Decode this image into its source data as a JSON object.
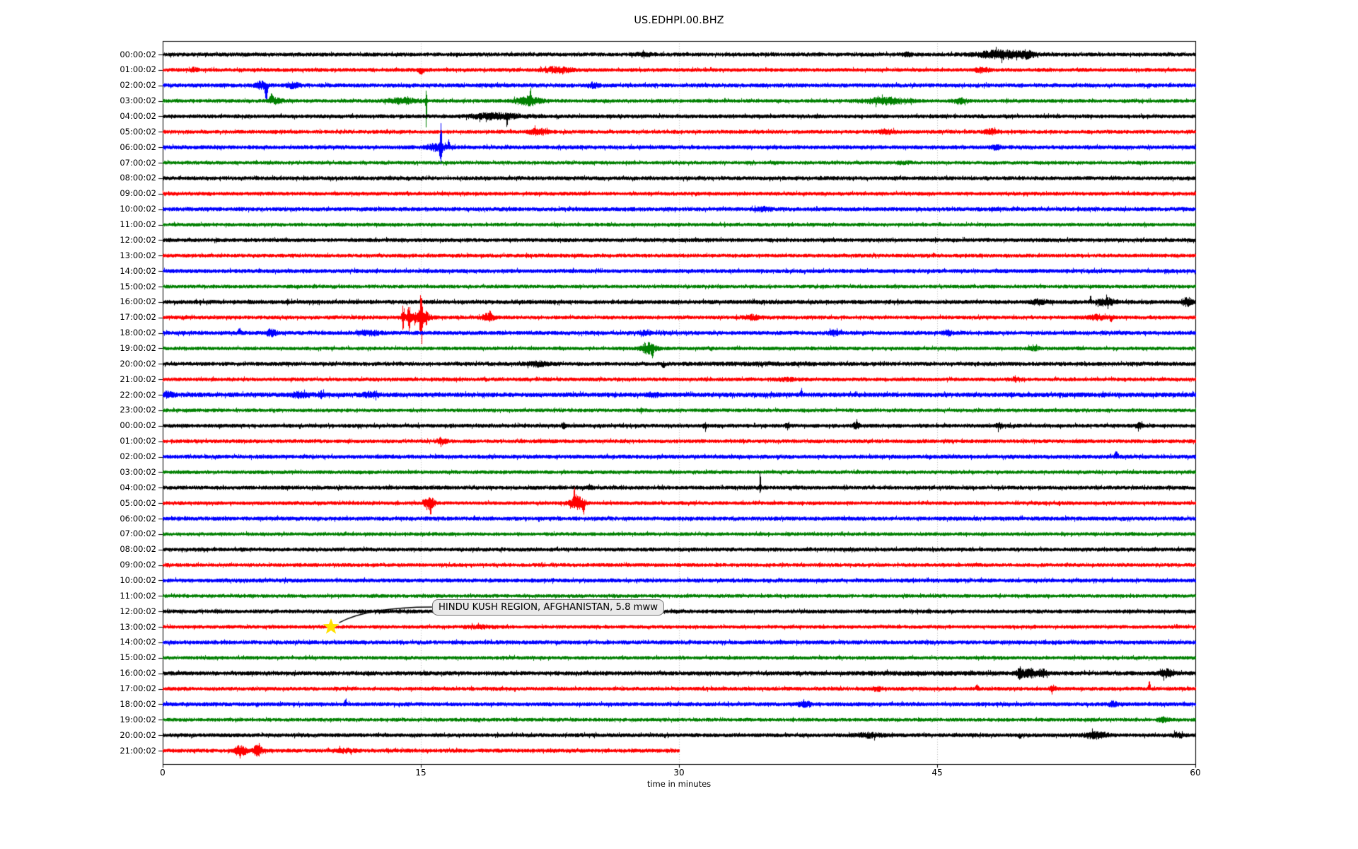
{
  "title": "US.EDHPI.00.BHZ",
  "annotation": {
    "text": "HINDU KUSH REGION, AFGHANISTAN, 5.8 mww",
    "marker": "star",
    "marker_color": "#ffe100",
    "row_index": 37,
    "minute": 9.8
  },
  "chart_data": {
    "type": "line",
    "variant": "helicorder-day-plot",
    "xlabel": "time in minutes",
    "xticks": [
      0,
      15,
      30,
      45,
      60
    ],
    "x_range": [
      0,
      60
    ],
    "gridlines": [
      15,
      30,
      45
    ],
    "grid_style": "dotted",
    "palette": {
      "black": "#000000",
      "red": "#ff0000",
      "blue": "#0000ff",
      "green": "#008000"
    },
    "traces": [
      {
        "label": "00:00:02",
        "color": "black",
        "base": 2.6,
        "start": 0,
        "end": 60,
        "events": [
          {
            "t": 28,
            "d": 0.8,
            "a": 1.5
          },
          {
            "t": 43.3,
            "d": 0.4,
            "a": 1.5
          },
          {
            "t": 48.7,
            "d": 1.8,
            "a": 4.5
          },
          {
            "t": 50.2,
            "d": 0.6,
            "a": 3
          }
        ]
      },
      {
        "label": "01:00:02",
        "color": "red",
        "base": 2.5,
        "start": 0,
        "end": 60,
        "events": [
          {
            "t": 1.8,
            "d": 0.3,
            "a": 2
          },
          {
            "t": 15.0,
            "d": 0.25,
            "a": 5,
            "dir": "down"
          },
          {
            "t": 22.9,
            "d": 1.2,
            "a": 3
          },
          {
            "t": 47.6,
            "d": 0.6,
            "a": 2.5
          }
        ]
      },
      {
        "label": "02:00:02",
        "color": "blue",
        "base": 2.7,
        "start": 0,
        "end": 60,
        "events": [
          {
            "t": 5.7,
            "d": 0.4,
            "a": 4
          },
          {
            "t": 6.0,
            "d": 0.12,
            "a": 20,
            "dir": "down"
          },
          {
            "t": 7.6,
            "d": 0.5,
            "a": 3
          },
          {
            "t": 25.0,
            "d": 0.4,
            "a": 2.5
          }
        ]
      },
      {
        "label": "03:00:02",
        "color": "green",
        "base": 2.4,
        "start": 0,
        "end": 60,
        "events": [
          {
            "t": 6.3,
            "d": 0.15,
            "a": 8,
            "dir": "up"
          },
          {
            "t": 6.6,
            "d": 0.5,
            "a": 3
          },
          {
            "t": 13.9,
            "d": 1.2,
            "a": 3
          },
          {
            "t": 15.3,
            "d": 0.05,
            "a": 15,
            "dir": "up"
          },
          {
            "t": 15.3,
            "d": 0.05,
            "a": 42,
            "dir": "down"
          },
          {
            "t": 21.2,
            "d": 1.0,
            "a": 5
          },
          {
            "t": 21.35,
            "d": 0.06,
            "a": 13,
            "dir": "up"
          },
          {
            "t": 42.0,
            "d": 1.8,
            "a": 3.5
          },
          {
            "t": 46.3,
            "d": 0.5,
            "a": 3
          }
        ]
      },
      {
        "label": "04:00:02",
        "color": "black",
        "base": 2.6,
        "start": 0,
        "end": 60,
        "events": [
          {
            "t": 19.3,
            "d": 1.8,
            "a": 3.5
          },
          {
            "t": 20.0,
            "d": 0.07,
            "a": 9,
            "dir": "down"
          }
        ]
      },
      {
        "label": "05:00:02",
        "color": "red",
        "base": 2.5,
        "start": 0,
        "end": 60,
        "events": [
          {
            "t": 21.8,
            "d": 0.8,
            "a": 3
          },
          {
            "t": 42.0,
            "d": 0.6,
            "a": 2.5
          },
          {
            "t": 48.1,
            "d": 0.5,
            "a": 2.5
          }
        ]
      },
      {
        "label": "06:00:02",
        "color": "blue",
        "base": 2.7,
        "start": 0,
        "end": 60,
        "events": [
          {
            "t": 15.9,
            "d": 0.8,
            "a": 3.5
          },
          {
            "t": 16.15,
            "d": 0.08,
            "a": 30,
            "dir": "up"
          },
          {
            "t": 16.15,
            "d": 0.08,
            "a": 22,
            "dir": "down"
          },
          {
            "t": 16.6,
            "d": 0.08,
            "a": 9,
            "dir": "up"
          },
          {
            "t": 48.4,
            "d": 0.4,
            "a": 2
          }
        ]
      },
      {
        "label": "07:00:02",
        "color": "green",
        "base": 2.4,
        "start": 0,
        "end": 60,
        "events": [
          {
            "t": 43,
            "d": 0.8,
            "a": 1.2
          }
        ]
      },
      {
        "label": "08:00:02",
        "color": "black",
        "base": 2.6,
        "start": 0,
        "end": 60,
        "events": []
      },
      {
        "label": "09:00:02",
        "color": "red",
        "base": 2.5,
        "start": 0,
        "end": 60,
        "events": []
      },
      {
        "label": "10:00:02",
        "color": "blue",
        "base": 2.7,
        "start": 0,
        "end": 60,
        "events": [
          {
            "t": 34.9,
            "d": 0.6,
            "a": 2
          }
        ]
      },
      {
        "label": "11:00:02",
        "color": "green",
        "base": 2.4,
        "start": 0,
        "end": 60,
        "events": []
      },
      {
        "label": "12:00:02",
        "color": "black",
        "base": 2.6,
        "start": 0,
        "end": 60,
        "events": []
      },
      {
        "label": "13:00:02",
        "color": "red",
        "base": 2.5,
        "start": 0,
        "end": 60,
        "events": []
      },
      {
        "label": "14:00:02",
        "color": "blue",
        "base": 2.7,
        "start": 0,
        "end": 60,
        "events": []
      },
      {
        "label": "15:00:02",
        "color": "green",
        "base": 2.4,
        "start": 0,
        "end": 60,
        "events": []
      },
      {
        "label": "16:00:02",
        "color": "black",
        "base": 2.8,
        "start": 0,
        "end": 60,
        "events": [
          {
            "t": 50.9,
            "d": 0.6,
            "a": 2.5
          },
          {
            "t": 53.9,
            "d": 0.07,
            "a": 8,
            "dir": "up"
          },
          {
            "t": 54.8,
            "d": 0.7,
            "a": 3.5
          },
          {
            "t": 59.5,
            "d": 0.4,
            "a": 4.5
          }
        ]
      },
      {
        "label": "17:00:02",
        "color": "red",
        "base": 2.5,
        "start": 0,
        "end": 60,
        "events": [
          {
            "t": 13.95,
            "d": 0.08,
            "a": 14
          },
          {
            "t": 14.3,
            "d": 0.08,
            "a": 16
          },
          {
            "t": 15.0,
            "d": 0.12,
            "a": 26
          },
          {
            "t": 15.3,
            "d": 0.08,
            "a": 12
          },
          {
            "t": 14.8,
            "d": 1.0,
            "a": 5
          },
          {
            "t": 18.9,
            "d": 0.5,
            "a": 4
          },
          {
            "t": 19.0,
            "d": 0.08,
            "a": 8,
            "dir": "up"
          },
          {
            "t": 34.2,
            "d": 0.6,
            "a": 2.5
          },
          {
            "t": 54.3,
            "d": 0.8,
            "a": 2.5
          },
          {
            "t": 55.1,
            "d": 0.08,
            "a": 6,
            "dir": "down"
          }
        ]
      },
      {
        "label": "18:00:02",
        "color": "blue",
        "base": 2.7,
        "start": 0,
        "end": 60,
        "events": [
          {
            "t": 4.45,
            "d": 0.12,
            "a": 6,
            "dir": "up"
          },
          {
            "t": 6.3,
            "d": 0.4,
            "a": 3.5
          },
          {
            "t": 12.1,
            "d": 0.8,
            "a": 2
          },
          {
            "t": 28.1,
            "d": 0.4,
            "a": 2.5
          },
          {
            "t": 39.0,
            "d": 0.4,
            "a": 2.5
          },
          {
            "t": 45.6,
            "d": 0.4,
            "a": 2.5
          }
        ]
      },
      {
        "label": "19:00:02",
        "color": "green",
        "base": 2.4,
        "start": 0,
        "end": 60,
        "events": [
          {
            "t": 28.2,
            "d": 0.6,
            "a": 6
          },
          {
            "t": 28.45,
            "d": 0.07,
            "a": 8,
            "dir": "down"
          },
          {
            "t": 50.6,
            "d": 0.4,
            "a": 2
          }
        ]
      },
      {
        "label": "20:00:02",
        "color": "black",
        "base": 2.6,
        "start": 0,
        "end": 60,
        "events": [
          {
            "t": 21.8,
            "d": 0.9,
            "a": 2.5
          },
          {
            "t": 29.1,
            "d": 0.15,
            "a": 4,
            "dir": "down"
          },
          {
            "t": 35,
            "d": 6,
            "a": 0.6
          }
        ]
      },
      {
        "label": "21:00:02",
        "color": "red",
        "base": 2.5,
        "start": 0,
        "end": 60,
        "events": [
          {
            "t": 36.2,
            "d": 0.9,
            "a": 1.3
          },
          {
            "t": 49.6,
            "d": 0.4,
            "a": 2
          }
        ]
      },
      {
        "label": "22:00:02",
        "color": "blue",
        "base": 3.1,
        "start": 0,
        "end": 60,
        "events": [
          {
            "t": 0.3,
            "d": 0.35,
            "a": 4
          },
          {
            "t": 8.0,
            "d": 0.7,
            "a": 2.5
          },
          {
            "t": 9.2,
            "d": 0.25,
            "a": 3
          },
          {
            "t": 12.1,
            "d": 0.6,
            "a": 2.8
          },
          {
            "t": 28.5,
            "d": 0.4,
            "a": 1.8
          },
          {
            "t": 37.1,
            "d": 0.08,
            "a": 7,
            "dir": "up"
          }
        ]
      },
      {
        "label": "23:00:02",
        "color": "green",
        "base": 2.4,
        "start": 0,
        "end": 60,
        "events": [
          {
            "t": 27.8,
            "d": 0.15,
            "a": 3
          }
        ]
      },
      {
        "label": "00:00:02",
        "color": "black",
        "base": 2.6,
        "start": 0,
        "end": 60,
        "events": [
          {
            "t": 23.3,
            "d": 0.15,
            "a": 3
          },
          {
            "t": 31.5,
            "d": 0.15,
            "a": 2.5
          },
          {
            "t": 36.3,
            "d": 0.15,
            "a": 4
          },
          {
            "t": 40.3,
            "d": 0.25,
            "a": 4
          },
          {
            "t": 48.6,
            "d": 0.25,
            "a": 3
          },
          {
            "t": 56.7,
            "d": 0.25,
            "a": 3
          }
        ]
      },
      {
        "label": "01:00:02",
        "color": "red",
        "base": 2.5,
        "start": 0,
        "end": 60,
        "events": [
          {
            "t": 16.2,
            "d": 0.4,
            "a": 3
          }
        ]
      },
      {
        "label": "02:00:02",
        "color": "blue",
        "base": 2.7,
        "start": 0,
        "end": 60,
        "events": [
          {
            "t": 55.4,
            "d": 0.15,
            "a": 6,
            "dir": "up"
          }
        ]
      },
      {
        "label": "03:00:02",
        "color": "green",
        "base": 2.4,
        "start": 0,
        "end": 60,
        "events": []
      },
      {
        "label": "04:00:02",
        "color": "black",
        "base": 2.6,
        "start": 0,
        "end": 60,
        "events": [
          {
            "t": 24.8,
            "d": 0.25,
            "a": 2.5
          },
          {
            "t": 34.7,
            "d": 0.06,
            "a": 22,
            "dir": "up"
          },
          {
            "t": 34.7,
            "d": 0.06,
            "a": 5,
            "dir": "down"
          }
        ]
      },
      {
        "label": "05:00:02",
        "color": "red",
        "base": 2.5,
        "start": 0,
        "end": 60,
        "events": [
          {
            "t": 15.5,
            "d": 0.4,
            "a": 7
          },
          {
            "t": 15.55,
            "d": 0.07,
            "a": 10,
            "dir": "down"
          },
          {
            "t": 23.9,
            "d": 0.08,
            "a": 15,
            "dir": "up"
          },
          {
            "t": 24.1,
            "d": 0.6,
            "a": 7
          },
          {
            "t": 24.45,
            "d": 0.08,
            "a": 13,
            "dir": "down"
          }
        ]
      },
      {
        "label": "06:00:02",
        "color": "blue",
        "base": 2.7,
        "start": 0,
        "end": 60,
        "events": []
      },
      {
        "label": "07:00:02",
        "color": "green",
        "base": 2.4,
        "start": 0,
        "end": 60,
        "events": []
      },
      {
        "label": "08:00:02",
        "color": "black",
        "base": 2.6,
        "start": 0,
        "end": 60,
        "events": []
      },
      {
        "label": "09:00:02",
        "color": "red",
        "base": 2.5,
        "start": 0,
        "end": 60,
        "events": []
      },
      {
        "label": "10:00:02",
        "color": "blue",
        "base": 2.7,
        "start": 0,
        "end": 60,
        "events": []
      },
      {
        "label": "11:00:02",
        "color": "green",
        "base": 2.4,
        "start": 0,
        "end": 60,
        "events": []
      },
      {
        "label": "12:00:02",
        "color": "black",
        "base": 2.6,
        "start": 0,
        "end": 60,
        "events": []
      },
      {
        "label": "13:00:02",
        "color": "red",
        "base": 2.4,
        "start": 0,
        "end": 60,
        "events": [
          {
            "t": 18.5,
            "d": 1.2,
            "a": 1.2
          }
        ]
      },
      {
        "label": "14:00:02",
        "color": "blue",
        "base": 2.7,
        "start": 0,
        "end": 60,
        "events": []
      },
      {
        "label": "15:00:02",
        "color": "green",
        "base": 2.4,
        "start": 0,
        "end": 60,
        "events": []
      },
      {
        "label": "16:00:02",
        "color": "black",
        "base": 2.8,
        "start": 0,
        "end": 60,
        "events": [
          {
            "t": 44,
            "d": 5,
            "a": 0.6
          },
          {
            "t": 49.8,
            "d": 0.25,
            "a": 6
          },
          {
            "t": 50.4,
            "d": 0.5,
            "a": 4.5
          },
          {
            "t": 51.1,
            "d": 0.35,
            "a": 4
          },
          {
            "t": 58.3,
            "d": 0.5,
            "a": 4
          }
        ]
      },
      {
        "label": "17:00:02",
        "color": "red",
        "base": 2.5,
        "start": 0,
        "end": 60,
        "events": [
          {
            "t": 41.5,
            "d": 0.4,
            "a": 2
          },
          {
            "t": 47.3,
            "d": 0.12,
            "a": 5,
            "dir": "up"
          },
          {
            "t": 51.7,
            "d": 0.25,
            "a": 3
          },
          {
            "t": 57.3,
            "d": 0.08,
            "a": 10,
            "dir": "up"
          }
        ]
      },
      {
        "label": "18:00:02",
        "color": "blue",
        "base": 2.7,
        "start": 0,
        "end": 60,
        "events": [
          {
            "t": 10.6,
            "d": 0.12,
            "a": 5,
            "dir": "up"
          },
          {
            "t": 37.3,
            "d": 0.5,
            "a": 3
          },
          {
            "t": 55.2,
            "d": 0.35,
            "a": 2.5
          }
        ]
      },
      {
        "label": "19:00:02",
        "color": "green",
        "base": 2.4,
        "start": 0,
        "end": 60,
        "events": [
          {
            "t": 58.1,
            "d": 0.4,
            "a": 2.5
          }
        ]
      },
      {
        "label": "20:00:02",
        "color": "black",
        "base": 2.6,
        "start": 0,
        "end": 60,
        "events": [
          {
            "t": 41.0,
            "d": 1.2,
            "a": 2
          },
          {
            "t": 49.8,
            "d": 0.15,
            "a": 4,
            "dir": "down"
          },
          {
            "t": 54.2,
            "d": 0.9,
            "a": 3.5
          },
          {
            "t": 59.0,
            "d": 0.4,
            "a": 2.5
          }
        ]
      },
      {
        "label": "21:00:02",
        "color": "red",
        "base": 2.6,
        "start": 0,
        "end": 30,
        "events": [
          {
            "t": 4.5,
            "d": 0.45,
            "a": 6
          },
          {
            "t": 5.5,
            "d": 0.35,
            "a": 6
          },
          {
            "t": 10.5,
            "d": 0.8,
            "a": 1.8
          }
        ]
      }
    ]
  }
}
